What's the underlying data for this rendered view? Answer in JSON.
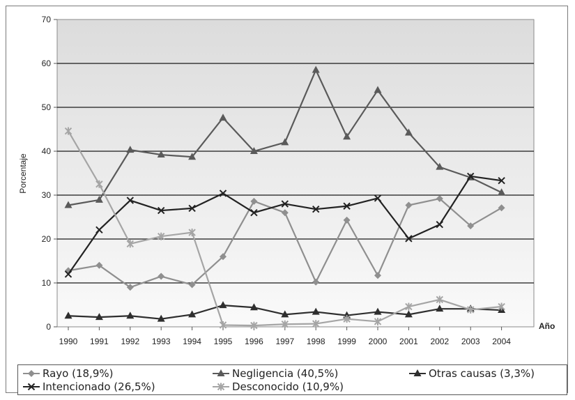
{
  "chart_data": {
    "type": "line",
    "ylabel": "Porcentaje",
    "xlabel": "Año",
    "ylim": [
      0,
      70
    ],
    "yticks": [
      0,
      10,
      20,
      30,
      40,
      50,
      60,
      70
    ],
    "grid": true,
    "legend_position": "bottom",
    "x": [
      "1990",
      "1991",
      "1992",
      "1993",
      "1994",
      "1995",
      "1996",
      "1997",
      "1998",
      "1999",
      "2000",
      "2001",
      "2002",
      "2003",
      "2004"
    ],
    "series": [
      {
        "name": "Rayo (18,9%)",
        "marker": "diamond",
        "color": "#8f8f8f",
        "values": [
          12.8,
          14.0,
          9.0,
          11.5,
          9.6,
          16.0,
          28.6,
          26.0,
          10.2,
          24.3,
          11.7,
          27.7,
          29.2,
          23.0,
          27.1
        ]
      },
      {
        "name": "Negligencia (40,5%)",
        "marker": "triangle",
        "color": "#5a5a5a",
        "values": [
          27.7,
          28.9,
          40.3,
          39.2,
          38.7,
          47.6,
          40.0,
          42.0,
          58.5,
          43.3,
          53.9,
          44.2,
          36.4,
          34.0,
          30.6
        ]
      },
      {
        "name": "Otras causas (3,3%)",
        "marker": "triangle",
        "color": "#2e2e2e",
        "values": [
          2.5,
          2.2,
          2.5,
          1.8,
          2.8,
          4.9,
          4.4,
          2.8,
          3.4,
          2.6,
          3.4,
          2.8,
          4.1,
          4.1,
          3.8
        ]
      },
      {
        "name": "Intencionado (26,5%)",
        "marker": "x",
        "color": "#222222",
        "values": [
          12.0,
          22.1,
          28.8,
          26.5,
          27.0,
          30.4,
          26.0,
          28.0,
          26.8,
          27.5,
          29.3,
          20.1,
          23.3,
          34.3,
          33.3
        ]
      },
      {
        "name": "Desconocido (10,9%)",
        "marker": "star",
        "color": "#a5a5a5",
        "values": [
          44.6,
          32.5,
          18.9,
          20.6,
          21.5,
          0.4,
          0.3,
          0.6,
          0.7,
          1.8,
          1.2,
          4.6,
          6.2,
          3.9,
          4.6
        ]
      }
    ]
  }
}
